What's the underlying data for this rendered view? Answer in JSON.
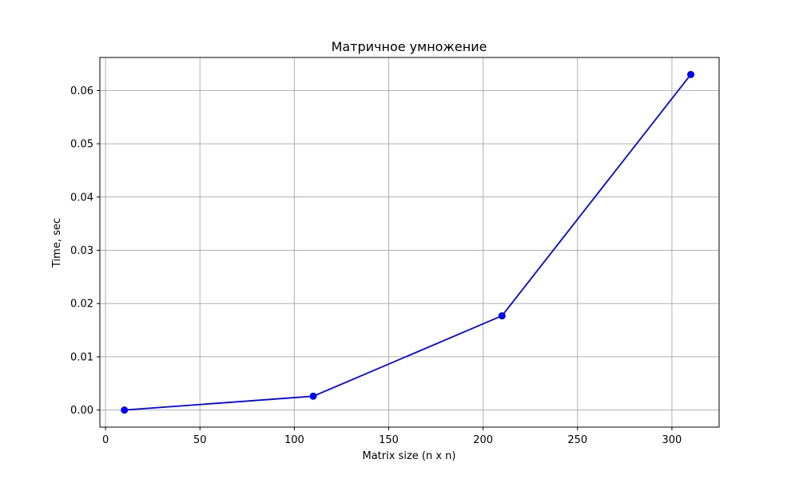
{
  "chart_data": {
    "type": "line",
    "title": "Матричное умножение",
    "xlabel": "Matrix size (n x n)",
    "ylabel": "Time, sec",
    "xlim": [
      -3,
      325
    ],
    "ylim": [
      -0.0032,
      0.0662
    ],
    "xticks": [
      0,
      50,
      100,
      150,
      200,
      250,
      300
    ],
    "xtick_labels": [
      "0",
      "50",
      "100",
      "150",
      "200",
      "250",
      "300"
    ],
    "yticks": [
      0.0,
      0.01,
      0.02,
      0.03,
      0.04,
      0.05,
      0.06
    ],
    "ytick_labels": [
      "0.00",
      "0.01",
      "0.02",
      "0.03",
      "0.04",
      "0.05",
      "0.06"
    ],
    "grid": true,
    "series": [
      {
        "color": "#0000ff",
        "marker": "circle",
        "x": [
          10,
          110,
          210,
          310
        ],
        "y": [
          0.0,
          0.0026,
          0.0177,
          0.063
        ]
      }
    ]
  }
}
